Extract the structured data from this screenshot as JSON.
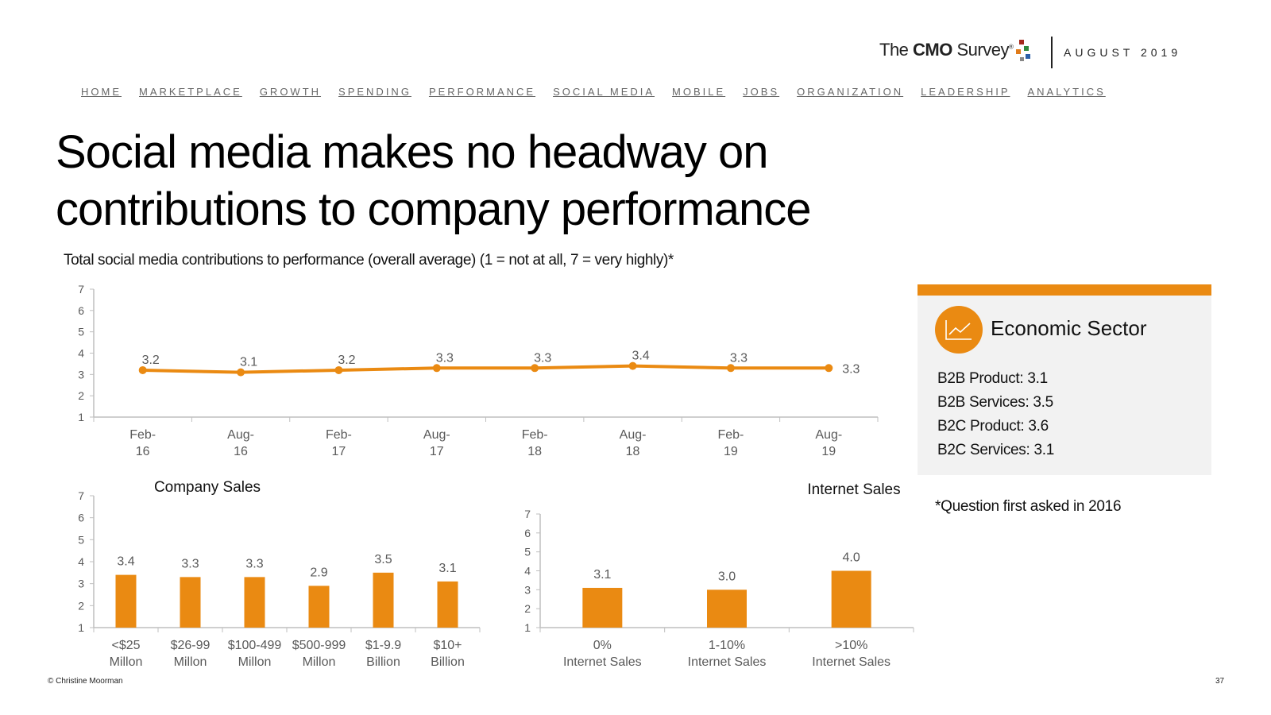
{
  "header": {
    "logo_prefix": "The ",
    "logo_bold": "CMO",
    "logo_suffix": " Survey",
    "logo_mark": "®",
    "date": "AUGUST 2019"
  },
  "nav": [
    "HOME",
    "MARKETPLACE",
    "GROWTH",
    "SPENDING",
    "PERFORMANCE",
    "SOCIAL MEDIA",
    "MOBILE",
    "JOBS",
    "ORGANIZATION",
    "LEADERSHIP",
    "ANALYTICS"
  ],
  "title_line1": "Social media makes no headway on",
  "title_line2": "contributions to company performance",
  "subtitle": "Total social media contributions to performance (overall average) (1 = not at all, 7 = very highly)*",
  "sidebar": {
    "title": "Economic Sector",
    "items": [
      "B2B Product: 3.1",
      "B2B Services: 3.5",
      "B2C Product: 3.6",
      "B2C Services: 3.1"
    ]
  },
  "note": "*Question first asked in 2016",
  "footer": {
    "copyright": "© Christine Moorman",
    "page": "37"
  },
  "colors": {
    "accent": "#ea8a12",
    "axis": "#bfbfbf",
    "label": "#595959"
  },
  "chart_data": [
    {
      "type": "line",
      "title": "",
      "categories": [
        [
          "Feb-",
          "16"
        ],
        [
          "Aug-",
          "16"
        ],
        [
          "Feb-",
          "17"
        ],
        [
          "Aug-",
          "17"
        ],
        [
          "Feb-",
          "18"
        ],
        [
          "Aug-",
          "18"
        ],
        [
          "Feb-",
          "19"
        ],
        [
          "Aug-",
          "19"
        ]
      ],
      "values": [
        3.2,
        3.1,
        3.2,
        3.3,
        3.3,
        3.4,
        3.3,
        3.3
      ],
      "labels": [
        "3.2",
        "3.1",
        "3.2",
        "3.3",
        "3.3",
        "3.4",
        "3.3",
        "3.3"
      ],
      "ylim": [
        1,
        7
      ],
      "yticks": [
        "1",
        "2",
        "3",
        "4",
        "5",
        "6",
        "7"
      ]
    },
    {
      "type": "bar",
      "title": "Company Sales",
      "categories": [
        [
          "<$25",
          "Millon"
        ],
        [
          "$26-99",
          "Millon"
        ],
        [
          "$100-499",
          "Millon"
        ],
        [
          "$500-999",
          "Millon"
        ],
        [
          "$1-9.9",
          "Billion"
        ],
        [
          "$10+",
          "Billion"
        ]
      ],
      "values": [
        3.4,
        3.3,
        3.3,
        2.9,
        3.5,
        3.1
      ],
      "labels": [
        "3.4",
        "3.3",
        "3.3",
        "2.9",
        "3.5",
        "3.1"
      ],
      "ylim": [
        1,
        7
      ],
      "yticks": [
        "1",
        "2",
        "3",
        "4",
        "5",
        "6",
        "7"
      ]
    },
    {
      "type": "bar",
      "title": "Internet Sales",
      "categories": [
        [
          "0%",
          "Internet Sales"
        ],
        [
          "1-10%",
          "Internet Sales"
        ],
        [
          ">10%",
          "Internet Sales"
        ]
      ],
      "values": [
        3.1,
        3.0,
        4.0
      ],
      "labels": [
        "3.1",
        "3.0",
        "4.0"
      ],
      "ylim": [
        1,
        7
      ],
      "yticks": [
        "1",
        "2",
        "3",
        "4",
        "5",
        "6",
        "7"
      ]
    }
  ]
}
